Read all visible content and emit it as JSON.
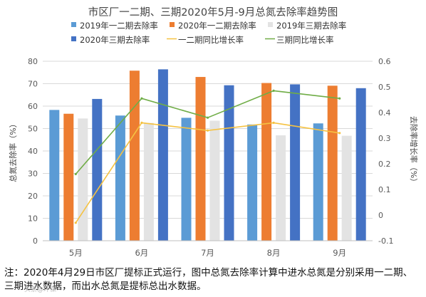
{
  "chart_data": {
    "type": "bar+line",
    "title": "市区厂一二期、三期2020年5月-9月总氮去除率趋势图",
    "categories": [
      "5月",
      "6月",
      "7月",
      "8月",
      "9月"
    ],
    "ylabel": "总氮去除率（%）",
    "y2label": "去除率增长率（%）",
    "ylim": [
      0,
      80
    ],
    "y2lim": [
      -0.1,
      0.6
    ],
    "yticks": [
      "0",
      "10",
      "20",
      "30",
      "40",
      "50",
      "60",
      "70",
      "80"
    ],
    "y2ticks": [
      "-0.1",
      "0",
      "0.1",
      "0.2",
      "0.3",
      "0.4",
      "0.5",
      "0.6"
    ],
    "legend_position": "top",
    "grid": true,
    "bar_series": [
      {
        "name": "2019年一二期去除率",
        "color": "#5b9bd5",
        "values": [
          58.3,
          55.8,
          54.8,
          51.8,
          52.3
        ]
      },
      {
        "name": "2020年一二期去除率",
        "color": "#ed7d31",
        "values": [
          56.6,
          75.8,
          73.0,
          70.3,
          69.1
        ]
      },
      {
        "name": "2019年三期去除率",
        "color": "#e3e3e3",
        "values": [
          54.5,
          52.5,
          53.5,
          47.0,
          46.8
        ]
      },
      {
        "name": "2020年三期去除率",
        "color": "#4472c4",
        "values": [
          63.2,
          76.4,
          69.3,
          69.7,
          68.0
        ]
      }
    ],
    "line_series": [
      {
        "name": "一二期同比增长率",
        "color": "#f5c242",
        "values": [
          -0.03,
          0.36,
          0.33,
          0.36,
          0.32
        ]
      },
      {
        "name": "三期同比增长率",
        "color": "#70ad47",
        "values": [
          0.16,
          0.455,
          0.38,
          0.485,
          0.455
        ]
      }
    ]
  },
  "note": "注：2020年4月29日市区厂提标正式运行，图中总氮去除率计算中进水总氮是分别采用一二期、三期进水数据，而出水总氮是提标总出水数据。",
  "watermark": "头条@环保"
}
